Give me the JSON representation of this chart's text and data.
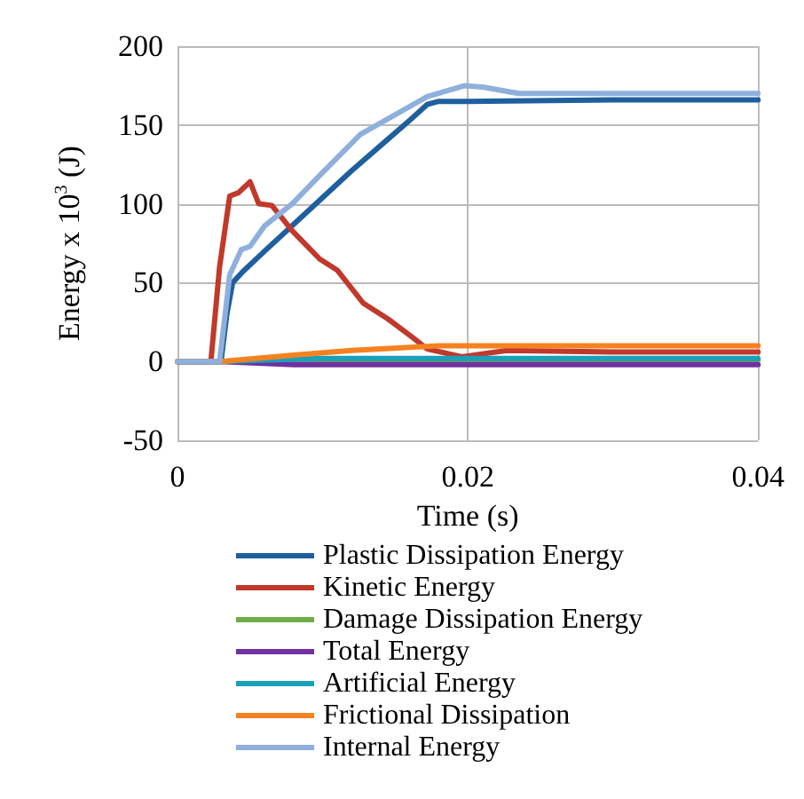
{
  "chart_data": {
    "type": "line",
    "xlabel": "Time (s)",
    "ylabel": "Energy x 10$^{3}$ (J)",
    "xlim": [
      0,
      0.04
    ],
    "xticks": [
      0,
      0.02,
      0.04
    ],
    "ylim": [
      -50,
      200
    ],
    "yticks": [
      -50,
      0,
      50,
      100,
      150,
      200
    ],
    "grid": true,
    "legend": "bottom",
    "marker": "none",
    "line_style": "solid",
    "series": [
      {
        "name": "Plastic Dissipation Energy",
        "color": "#1f5f9e",
        "x": [
          0,
          0.003,
          0.0034,
          0.0038,
          0.0045,
          0.006,
          0.008,
          0.01,
          0.012,
          0.014,
          0.016,
          0.0172,
          0.018,
          0.02,
          0.03,
          0.04
        ],
        "values": [
          0,
          0,
          30,
          50,
          57,
          70,
          87,
          104,
          121,
          137,
          153,
          163,
          165,
          165,
          166,
          166
        ]
      },
      {
        "name": "Kinetic Energy",
        "color": "#c0392b",
        "x": [
          0,
          0.0023,
          0.0029,
          0.0036,
          0.0042,
          0.005,
          0.0056,
          0.0065,
          0.0079,
          0.0098,
          0.011,
          0.0128,
          0.0145,
          0.0161,
          0.0172,
          0.0196,
          0.0227,
          0.03,
          0.04
        ],
        "values": [
          0,
          0,
          60,
          105,
          107,
          114,
          100,
          99,
          83,
          65,
          58,
          37,
          27,
          16,
          8,
          3,
          7,
          6,
          6
        ]
      },
      {
        "name": "Damage Dissipation Energy",
        "color": "#70ad47",
        "x": [
          0,
          0.003,
          0.01,
          0.02,
          0.04
        ],
        "values": [
          0,
          0,
          1,
          1,
          1
        ]
      },
      {
        "name": "Total Energy",
        "color": "#7030a0",
        "x": [
          0,
          0.003,
          0.008,
          0.02,
          0.03,
          0.04
        ],
        "values": [
          0,
          0,
          -2,
          -2,
          -2,
          -2
        ]
      },
      {
        "name": "Artificial Energy",
        "color": "#1aa0b8",
        "x": [
          0,
          0.003,
          0.01,
          0.02,
          0.04
        ],
        "values": [
          0,
          0,
          2,
          2,
          2
        ]
      },
      {
        "name": "Frictional Dissipation",
        "color": "#f58220",
        "x": [
          0,
          0.003,
          0.008,
          0.012,
          0.018,
          0.025,
          0.04
        ],
        "values": [
          0,
          0,
          4,
          7,
          10,
          10,
          10
        ]
      },
      {
        "name": "Internal Energy",
        "color": "#8fb0dc",
        "x": [
          0,
          0.0029,
          0.0036,
          0.0044,
          0.005,
          0.006,
          0.0079,
          0.0098,
          0.0126,
          0.0149,
          0.0172,
          0.0198,
          0.0211,
          0.0235,
          0.03,
          0.04
        ],
        "values": [
          0,
          0,
          55,
          71,
          73,
          86,
          100,
          118,
          144,
          156,
          168,
          175,
          174,
          170,
          170,
          170
        ]
      }
    ]
  }
}
